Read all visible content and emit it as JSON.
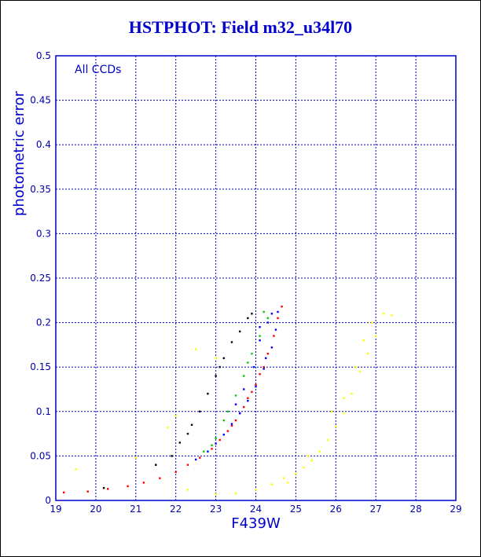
{
  "chart_data": {
    "type": "scatter",
    "title": "HSTPHOT: Field m32_u34l70",
    "xlabel": "F439W",
    "ylabel": "photometric error",
    "annotation": "All CCDs",
    "xlim": [
      19,
      29
    ],
    "ylim": [
      0,
      0.5
    ],
    "x_ticks": [
      "19",
      "20",
      "21",
      "22",
      "23",
      "24",
      "25",
      "26",
      "27",
      "28",
      "29"
    ],
    "y_ticks": [
      "0",
      "0.05",
      "0.1",
      "0.15",
      "0.2",
      "0.25",
      "0.3",
      "0.35",
      "0.4",
      "0.45",
      "0.5"
    ],
    "grid": true,
    "series": [
      {
        "color": "#ff0000",
        "points": [
          [
            19.2,
            0.009
          ],
          [
            19.8,
            0.01
          ],
          [
            20.3,
            0.013
          ],
          [
            20.8,
            0.016
          ],
          [
            21.2,
            0.02
          ],
          [
            21.6,
            0.025
          ],
          [
            22.0,
            0.032
          ],
          [
            22.3,
            0.04
          ],
          [
            22.6,
            0.048
          ],
          [
            22.9,
            0.058
          ],
          [
            23.1,
            0.068
          ],
          [
            23.3,
            0.078
          ],
          [
            23.5,
            0.09
          ],
          [
            23.7,
            0.105
          ],
          [
            23.9,
            0.122
          ],
          [
            24.1,
            0.142
          ],
          [
            24.3,
            0.165
          ],
          [
            24.45,
            0.185
          ],
          [
            24.55,
            0.205
          ],
          [
            24.65,
            0.218
          ],
          [
            24.2,
            0.15
          ],
          [
            24.0,
            0.13
          ],
          [
            23.8,
            0.115
          ],
          [
            23.6,
            0.098
          ],
          [
            23.4,
            0.084
          ]
        ]
      },
      {
        "color": "#0000ff",
        "points": [
          [
            22.5,
            0.046
          ],
          [
            22.8,
            0.055
          ],
          [
            23.0,
            0.064
          ],
          [
            23.2,
            0.074
          ],
          [
            23.4,
            0.086
          ],
          [
            23.6,
            0.098
          ],
          [
            23.8,
            0.112
          ],
          [
            24.0,
            0.128
          ],
          [
            24.2,
            0.148
          ],
          [
            24.4,
            0.172
          ],
          [
            24.5,
            0.192
          ],
          [
            24.55,
            0.212
          ],
          [
            24.3,
            0.2
          ],
          [
            24.1,
            0.18
          ],
          [
            24.25,
            0.16
          ],
          [
            23.95,
            0.15
          ],
          [
            23.7,
            0.125
          ],
          [
            23.5,
            0.108
          ],
          [
            24.4,
            0.21
          ],
          [
            24.1,
            0.195
          ]
        ]
      },
      {
        "color": "#00cc00",
        "points": [
          [
            22.7,
            0.055
          ],
          [
            23.0,
            0.07
          ],
          [
            23.2,
            0.09
          ],
          [
            23.5,
            0.118
          ],
          [
            23.7,
            0.14
          ],
          [
            23.9,
            0.165
          ],
          [
            24.1,
            0.185
          ],
          [
            24.3,
            0.205
          ],
          [
            23.3,
            0.1
          ],
          [
            23.8,
            0.155
          ],
          [
            24.2,
            0.212
          ],
          [
            22.9,
            0.062
          ]
        ]
      },
      {
        "color": "#000000",
        "points": [
          [
            20.2,
            0.014
          ],
          [
            21.5,
            0.04
          ],
          [
            21.9,
            0.05
          ],
          [
            22.1,
            0.065
          ],
          [
            22.4,
            0.085
          ],
          [
            22.6,
            0.1
          ],
          [
            22.8,
            0.12
          ],
          [
            23.0,
            0.14
          ],
          [
            23.2,
            0.16
          ],
          [
            23.4,
            0.178
          ],
          [
            23.6,
            0.19
          ],
          [
            23.8,
            0.205
          ],
          [
            23.9,
            0.21
          ],
          [
            22.3,
            0.075
          ],
          [
            23.1,
            0.15
          ]
        ]
      },
      {
        "color": "#ffff00",
        "points": [
          [
            19.5,
            0.035
          ],
          [
            21.0,
            0.048
          ],
          [
            21.8,
            0.082
          ],
          [
            22.0,
            0.095
          ],
          [
            22.3,
            0.012
          ],
          [
            23.0,
            0.007
          ],
          [
            23.5,
            0.008
          ],
          [
            24.0,
            0.012
          ],
          [
            24.4,
            0.018
          ],
          [
            24.7,
            0.025
          ],
          [
            25.0,
            0.03
          ],
          [
            25.2,
            0.037
          ],
          [
            25.4,
            0.045
          ],
          [
            25.6,
            0.055
          ],
          [
            25.8,
            0.068
          ],
          [
            26.0,
            0.083
          ],
          [
            26.2,
            0.098
          ],
          [
            26.4,
            0.12
          ],
          [
            26.6,
            0.145
          ],
          [
            26.8,
            0.165
          ],
          [
            27.0,
            0.185
          ],
          [
            27.2,
            0.21
          ],
          [
            27.4,
            0.208
          ],
          [
            26.9,
            0.2
          ],
          [
            26.2,
            0.115
          ],
          [
            25.9,
            0.1
          ],
          [
            25.3,
            0.05
          ],
          [
            24.8,
            0.02
          ],
          [
            22.5,
            0.17
          ],
          [
            23.0,
            0.16
          ],
          [
            26.5,
            0.15
          ],
          [
            26.7,
            0.18
          ]
        ]
      }
    ]
  }
}
